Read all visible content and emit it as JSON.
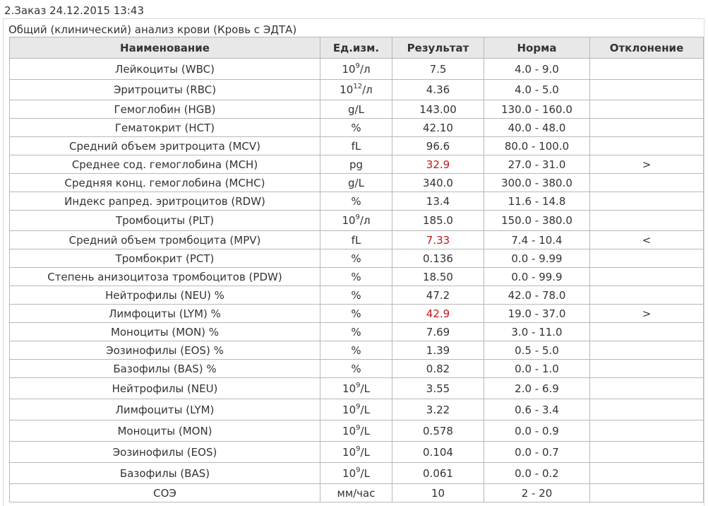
{
  "order_title": "2.Заказ 24.12.2015 13:43",
  "panel_title": "Общий (клинический) анализ крови (Кровь с ЭДТА)",
  "headers": [
    "Наименование",
    "Ед.изм.",
    "Результат",
    "Норма",
    "Отклонение"
  ],
  "rows": [
    {
      "name": "Лейкоциты (WBC)",
      "unit_base": "10",
      "unit_exp": "9",
      "unit_suffix": "/л",
      "result": "7.5",
      "norm": "4.0 - 9.0",
      "deviation": "",
      "abnormal": false
    },
    {
      "name": "Эритроциты (RBC)",
      "unit_base": "10",
      "unit_exp": "12",
      "unit_suffix": "/л",
      "result": "4.36",
      "norm": "4.0 - 5.0",
      "deviation": "",
      "abnormal": false
    },
    {
      "name": "Гемоглобин (HGB)",
      "unit_base": "g/L",
      "unit_exp": "",
      "unit_suffix": "",
      "result": "143.00",
      "norm": "130.0 - 160.0",
      "deviation": "",
      "abnormal": false
    },
    {
      "name": "Гематокрит (HCT)",
      "unit_base": "%",
      "unit_exp": "",
      "unit_suffix": "",
      "result": "42.10",
      "norm": "40.0 - 48.0",
      "deviation": "",
      "abnormal": false
    },
    {
      "name": "Средний объем эритроцита (MCV)",
      "unit_base": "fL",
      "unit_exp": "",
      "unit_suffix": "",
      "result": "96.6",
      "norm": "80.0 - 100.0",
      "deviation": "",
      "abnormal": false
    },
    {
      "name": "Среднее сод. гемоглобина (MCH)",
      "unit_base": "pg",
      "unit_exp": "",
      "unit_suffix": "",
      "result": "32.9",
      "norm": "27.0 - 31.0",
      "deviation": ">",
      "abnormal": true
    },
    {
      "name": "Средняя конц. гемоглобина (MCHC)",
      "unit_base": "g/L",
      "unit_exp": "",
      "unit_suffix": "",
      "result": "340.0",
      "norm": "300.0 - 380.0",
      "deviation": "",
      "abnormal": false
    },
    {
      "name": "Индекс рапред. эритроцитов (RDW)",
      "unit_base": "%",
      "unit_exp": "",
      "unit_suffix": "",
      "result": "13.4",
      "norm": "11.6 - 14.8",
      "deviation": "",
      "abnormal": false
    },
    {
      "name": "Тромбоциты (PLT)",
      "unit_base": "10",
      "unit_exp": "9",
      "unit_suffix": "/л",
      "result": "185.0",
      "norm": "150.0 - 380.0",
      "deviation": "",
      "abnormal": false
    },
    {
      "name": "Средний объем тромбоцита (MPV)",
      "unit_base": "fL",
      "unit_exp": "",
      "unit_suffix": "",
      "result": "7.33",
      "norm": "7.4 - 10.4",
      "deviation": "<",
      "abnormal": true
    },
    {
      "name": "Тромбокрит (PCT)",
      "unit_base": "%",
      "unit_exp": "",
      "unit_suffix": "",
      "result": "0.136",
      "norm": "0.0 - 9.99",
      "deviation": "",
      "abnormal": false
    },
    {
      "name": "Степень анизоцитоза тромбоцитов (PDW)",
      "unit_base": "%",
      "unit_exp": "",
      "unit_suffix": "",
      "result": "18.50",
      "norm": "0.0 - 99.9",
      "deviation": "",
      "abnormal": false
    },
    {
      "name": "Нейтрофилы (NEU) %",
      "unit_base": "%",
      "unit_exp": "",
      "unit_suffix": "",
      "result": "47.2",
      "norm": "42.0 - 78.0",
      "deviation": "",
      "abnormal": false
    },
    {
      "name": "Лимфоциты (LYM) %",
      "unit_base": "%",
      "unit_exp": "",
      "unit_suffix": "",
      "result": "42.9",
      "norm": "19.0 - 37.0",
      "deviation": ">",
      "abnormal": true
    },
    {
      "name": "Моноциты (MON) %",
      "unit_base": "%",
      "unit_exp": "",
      "unit_suffix": "",
      "result": "7.69",
      "norm": "3.0 - 11.0",
      "deviation": "",
      "abnormal": false
    },
    {
      "name": "Эозинофилы (EOS) %",
      "unit_base": "%",
      "unit_exp": "",
      "unit_suffix": "",
      "result": "1.39",
      "norm": "0.5 - 5.0",
      "deviation": "",
      "abnormal": false
    },
    {
      "name": "Базофилы (BAS) %",
      "unit_base": "%",
      "unit_exp": "",
      "unit_suffix": "",
      "result": "0.82",
      "norm": "0.0 - 1.0",
      "deviation": "",
      "abnormal": false
    },
    {
      "name": "Нейтрофилы (NEU)",
      "unit_base": "10",
      "unit_exp": "9",
      "unit_suffix": "/L",
      "result": "3.55",
      "norm": "2.0 - 6.9",
      "deviation": "",
      "abnormal": false
    },
    {
      "name": "Лимфоциты (LYM)",
      "unit_base": "10",
      "unit_exp": "9",
      "unit_suffix": "/L",
      "result": "3.22",
      "norm": "0.6 - 3.4",
      "deviation": "",
      "abnormal": false
    },
    {
      "name": "Моноциты (MON)",
      "unit_base": "10",
      "unit_exp": "9",
      "unit_suffix": "/L",
      "result": "0.578",
      "norm": "0.0 - 0.9",
      "deviation": "",
      "abnormal": false
    },
    {
      "name": "Эозинофилы (EOS)",
      "unit_base": "10",
      "unit_exp": "9",
      "unit_suffix": "/L",
      "result": "0.104",
      "norm": "0.0 - 0.7",
      "deviation": "",
      "abnormal": false
    },
    {
      "name": "Базофилы (BAS)",
      "unit_base": "10",
      "unit_exp": "9",
      "unit_suffix": "/L",
      "result": "0.061",
      "norm": "0.0 - 0.2",
      "deviation": "",
      "abnormal": false
    },
    {
      "name": "СОЭ",
      "unit_base": "мм/час",
      "unit_exp": "",
      "unit_suffix": "",
      "result": "10",
      "norm": "2 - 20",
      "deviation": "",
      "abnormal": false
    }
  ],
  "colors": {
    "abnormal_result": "#c0171a",
    "header_background": "#e8e8e8",
    "grid_line": "#b8b8b8"
  }
}
